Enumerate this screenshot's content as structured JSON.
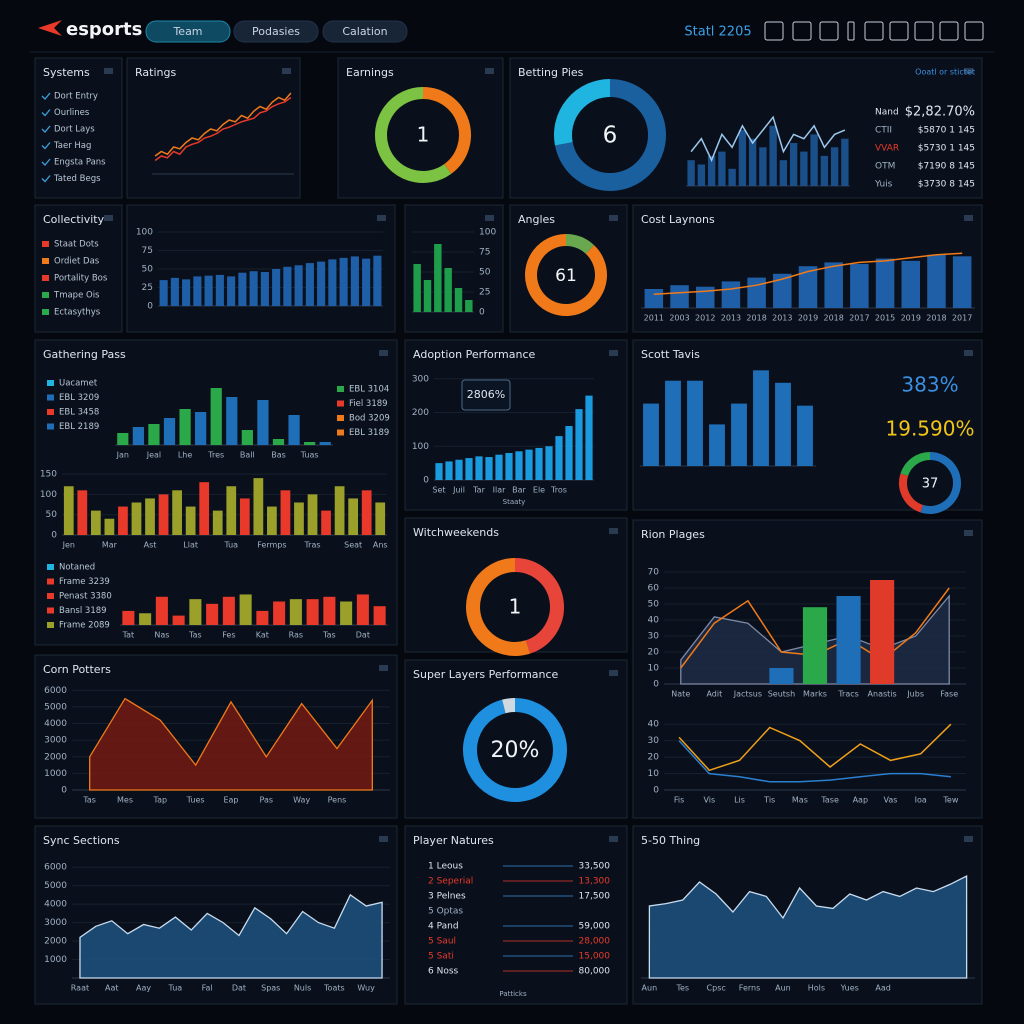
{
  "header": {
    "logo": "esports",
    "tabs": [
      "Team",
      "Podasies",
      "Calation"
    ],
    "status": "Statl 2205"
  },
  "chart_data": [
    {
      "type": "list",
      "title": "Systems",
      "marker": "check",
      "color": "#3a9fd8",
      "items": [
        "Dort Entry",
        "Ourlines",
        "Dort Lays",
        "Taer Hag",
        "Engsta Pans",
        "Tated Begs"
      ]
    },
    {
      "type": "line",
      "title": "Ratings",
      "ylim": [
        0,
        100
      ],
      "series": [
        {
          "color": "#f07a1a",
          "values": [
            20,
            25,
            22,
            30,
            28,
            35,
            40,
            38,
            45,
            50,
            48,
            55,
            60,
            58,
            65,
            62,
            70,
            75,
            72,
            80,
            85,
            82,
            90
          ]
        },
        {
          "color": "#e8392a",
          "values": [
            15,
            20,
            18,
            25,
            22,
            30,
            33,
            35,
            40,
            42,
            45,
            50,
            52,
            55,
            58,
            60,
            62,
            68,
            70,
            75,
            78,
            80,
            85
          ]
        }
      ]
    },
    {
      "type": "donut",
      "title": "Earnings",
      "values": [
        40,
        60
      ],
      "colors": [
        "#f07a1a",
        "#7cc243"
      ],
      "center": "1"
    },
    {
      "type": "donut",
      "title": "Betting Pies",
      "values": [
        72,
        28
      ],
      "colors": [
        "#1a5f9e",
        "#1fb5e0"
      ],
      "center": "6"
    },
    {
      "type": "combo",
      "ylim": [
        0,
        100
      ],
      "series": [
        {
          "type": "bar",
          "color": "#1a4f8a",
          "values": [
            30,
            25,
            35,
            40,
            20,
            65,
            55,
            45,
            70,
            30,
            50,
            40,
            60,
            35,
            45,
            55
          ]
        },
        {
          "type": "line",
          "color": "#9cc8ee",
          "values": [
            40,
            55,
            30,
            60,
            45,
            70,
            50,
            65,
            80,
            40,
            60,
            55,
            70,
            45,
            60,
            65
          ]
        }
      ]
    },
    {
      "type": "stats",
      "note": "Ooatl or stictet",
      "colors": [
        "#dfe6ef",
        "#9fb0c4",
        "#e8392a",
        "#9fb0c4",
        "#9fb0c4"
      ],
      "rows": [
        [
          "Nand",
          "$2,82.70%"
        ],
        [
          "CTII",
          "$5870 1 145"
        ],
        [
          "VVAR",
          "$5730 1 145"
        ],
        [
          "OTM",
          "$7190 8 145"
        ],
        [
          "Yuis",
          "$3730 8 145"
        ]
      ]
    },
    {
      "type": "list",
      "title": "Collectivity",
      "marker": "dot",
      "colors": [
        "#e8392a",
        "#f07a1a",
        "#e8392a",
        "#2aa84a",
        "#2aa84a"
      ],
      "items": [
        "Staat Dots",
        "Ordiet Das",
        "Portality Bos",
        "Tmape Ois",
        "Ectasythys"
      ]
    },
    {
      "type": "bar",
      "color": "#1f5fa8",
      "ylim": [
        0,
        100
      ],
      "yticks": [
        0,
        25,
        50,
        75,
        100
      ],
      "values": [
        35,
        38,
        36,
        40,
        41,
        42,
        40,
        45,
        47,
        46,
        50,
        53,
        55,
        58,
        60,
        63,
        65,
        67,
        64,
        68
      ]
    },
    {
      "type": "bar",
      "color": "#1e9e4a",
      "ylim": [
        0,
        100
      ],
      "yticks": [
        0,
        25,
        50,
        75,
        100
      ],
      "y_axis": "right",
      "values": [
        60,
        40,
        85,
        55,
        30,
        15
      ]
    },
    {
      "type": "donut",
      "title": "Angles",
      "values": [
        12,
        88
      ],
      "colors": [
        "#6aa84f",
        "#f07a1a"
      ],
      "center": "61"
    },
    {
      "type": "combo",
      "title": "Cost Laynons",
      "ylim": [
        0,
        100
      ],
      "categories": [
        "2011",
        "2003",
        "2012",
        "2013",
        "2018",
        "2013",
        "2019",
        "2018",
        "2017",
        "2015",
        "2019",
        "2018",
        "2017"
      ],
      "series": [
        {
          "type": "bar",
          "color": "#1f5fa8",
          "values": [
            25,
            30,
            28,
            35,
            40,
            45,
            55,
            60,
            58,
            65,
            62,
            70,
            68
          ]
        },
        {
          "type": "line",
          "color": "#f07a1a",
          "values": [
            18,
            20,
            22,
            25,
            30,
            38,
            48,
            55,
            60,
            62,
            66,
            70,
            72
          ]
        }
      ]
    },
    {
      "type": "list",
      "title": "Gathering Pass",
      "marker": "dot",
      "colors": [
        "#1fb5e0",
        "#1f6fb8",
        "#e8392a",
        "#1f6fb8"
      ],
      "items": [
        "Uacamet",
        "EBL 3209",
        "EBL 3458",
        "EBL 2189"
      ]
    },
    {
      "type": "list",
      "marker": "dot",
      "colors": [
        "#2aa84a",
        "#e8392a",
        "#f07a1a",
        "#f07a1a"
      ],
      "items": [
        "EBL 3104",
        "Fiel 3189",
        "Bod 3209",
        "EBL 3189"
      ]
    },
    {
      "type": "bar",
      "colors": [
        "#2aa84a",
        "#1f6fb8"
      ],
      "ylim": [
        0,
        100
      ],
      "values": [
        20,
        30,
        35,
        45,
        60,
        55,
        95,
        80,
        25,
        75,
        10,
        50,
        5,
        5
      ],
      "categories": [
        "Jan",
        null,
        "Jeal",
        null,
        "Lhe",
        null,
        "Tres",
        null,
        "Ball",
        null,
        "Bas",
        null,
        "Tuas",
        null
      ]
    },
    {
      "type": "bar",
      "colors": [
        "#9aa02a",
        "#e8392a",
        "#9aa02a"
      ],
      "ylim": [
        0,
        160
      ],
      "yticks": [
        0,
        50,
        100,
        150
      ],
      "values": [
        120,
        110,
        60,
        40,
        70,
        80,
        90,
        100,
        110,
        70,
        130,
        60,
        120,
        90,
        140,
        70,
        110,
        80,
        100,
        60,
        120,
        90,
        110,
        80
      ],
      "categories": [
        "Jen",
        null,
        null,
        "Mar",
        null,
        null,
        "Ast",
        null,
        null,
        "Llat",
        null,
        null,
        "Tua",
        null,
        null,
        "Fermps",
        null,
        null,
        "Tras",
        null,
        null,
        "Seat",
        null,
        "Ans"
      ]
    },
    {
      "type": "list",
      "marker": "dot",
      "colors": [
        "#1fb5e0",
        "#e8392a",
        "#e8392a",
        "#e8392a",
        "#9aa02a"
      ],
      "items": [
        "Notaned",
        "Frame 3239",
        "Penast 3380",
        "Bansl 3189",
        "Frame 2089"
      ]
    },
    {
      "type": "bar",
      "colors": [
        "#e8392a",
        "#9aa02a",
        "#e8392a"
      ],
      "ylim": [
        0,
        100
      ],
      "values": [
        30,
        25,
        60,
        20,
        55,
        45,
        60,
        65,
        30,
        50,
        55,
        55,
        60,
        50,
        65,
        40
      ],
      "categories": [
        "Tat",
        null,
        "Nas",
        null,
        "Tas",
        null,
        "Fes",
        null,
        "Kat",
        null,
        "Ras",
        null,
        "Tas",
        null,
        "Dat",
        null
      ]
    },
    {
      "type": "bar",
      "title": "Adoption Performance",
      "color": "#1a9be0",
      "ylim": [
        0,
        320
      ],
      "yticks": [
        0,
        100,
        200,
        300
      ],
      "annotation": "2806%",
      "xlabel": "Staaty",
      "values": [
        50,
        55,
        60,
        65,
        70,
        68,
        75,
        80,
        85,
        90,
        95,
        100,
        130,
        160,
        210,
        250
      ],
      "categories": [
        "Set",
        null,
        "Juil",
        null,
        "Tar",
        null,
        "Ilar",
        null,
        "Bar",
        null,
        "Ele",
        null,
        "Tros",
        null,
        null,
        null
      ]
    },
    {
      "type": "bar",
      "title": "Scott Tavis",
      "color": "#1f6fb8",
      "ylim": [
        0,
        100
      ],
      "values": [
        60,
        82,
        82,
        40,
        60,
        92,
        80,
        58
      ]
    },
    {
      "type": "kpi",
      "colors": [
        "#3a8fe0",
        "#f0c419"
      ],
      "items": [
        "383%",
        "19.590%"
      ]
    },
    {
      "type": "donut",
      "values": [
        55,
        25,
        20
      ],
      "colors": [
        "#1f6fb8",
        "#e03a2a",
        "#2aa84a"
      ],
      "center": "37"
    },
    {
      "type": "donut",
      "title": "Witchweekends",
      "values": [
        45,
        55
      ],
      "colors": [
        "#e8453a",
        "#f07a1a"
      ],
      "center": "1"
    },
    {
      "type": "combo",
      "title": "Rion Plages",
      "ylim": [
        0,
        80
      ],
      "yticks": [
        0,
        10,
        20,
        30,
        40,
        50,
        60,
        70
      ],
      "categories": [
        "Nate",
        "Adit",
        "Jactsus",
        "Seutsh",
        "Marks",
        "Tracs",
        "Anastis",
        "Jubs",
        "Fase"
      ],
      "series": [
        {
          "type": "area",
          "color": "#1c2a44",
          "edge": "#7f8aa8",
          "values": [
            15,
            42,
            38,
            20,
            25,
            30,
            22,
            30,
            55
          ]
        },
        {
          "type": "line",
          "color": "#f07a1a",
          "values": [
            10,
            38,
            52,
            20,
            18,
            28,
            15,
            32,
            60
          ]
        },
        {
          "type": "bar",
          "colors": [
            "#2aa84a",
            "#1f6fb8",
            "#e03a2a",
            "#1f6fb8"
          ],
          "values": [
            null,
            null,
            null,
            10,
            48,
            55,
            65,
            null,
            null
          ]
        }
      ]
    },
    {
      "type": "line",
      "ylim": [
        0,
        45
      ],
      "yticks": [
        0,
        10,
        20,
        30,
        40
      ],
      "categories": [
        "Fis",
        "Vis",
        "Lis",
        "Tis",
        "Mas",
        "Tase",
        "Aap",
        "Vas",
        "Ioa",
        "Tew"
      ],
      "series": [
        {
          "color": "#f0a01a",
          "values": [
            32,
            12,
            18,
            38,
            30,
            14,
            28,
            18,
            22,
            40
          ]
        },
        {
          "color": "#2a7fd0",
          "values": [
            30,
            10,
            8,
            5,
            5,
            6,
            8,
            10,
            10,
            8
          ]
        }
      ]
    },
    {
      "type": "area",
      "title": "Corn Potters",
      "color": "#6e1a14",
      "edge": "#f07a1a",
      "ylim": [
        0,
        6500
      ],
      "yticks": [
        0,
        1000,
        2000,
        3000,
        4000,
        5000,
        6000
      ],
      "values": [
        2000,
        5500,
        4200,
        1500,
        5300,
        2000,
        5200,
        2500,
        5400
      ],
      "categories": [
        "Tas",
        "Mes",
        "Tap",
        "Tues",
        "Eap",
        "Pas",
        "Way",
        "Pens",
        null
      ]
    },
    {
      "type": "donut",
      "title": "Super Layers Performance",
      "values": [
        96,
        4
      ],
      "colors": [
        "#1f8fe0",
        "#d0d8e0"
      ],
      "center": "20%"
    },
    {
      "type": "area",
      "title": "Sync Sections",
      "color": "#1c4f7a",
      "edge": "#c8dcf0",
      "ylim": [
        0,
        6500
      ],
      "yticks": [
        1000,
        2000,
        3000,
        4000,
        5000,
        6000
      ],
      "values": [
        2200,
        2800,
        3100,
        2400,
        2900,
        2700,
        3300,
        2600,
        3500,
        3000,
        2300,
        3800,
        3200,
        2400,
        3600,
        3000,
        2700,
        4500,
        3900,
        4100
      ],
      "categories": [
        "Raat",
        null,
        "Aat",
        null,
        "Aay",
        null,
        "Tua",
        null,
        "Fal",
        null,
        "Dat",
        null,
        "Spas",
        null,
        "Nuls",
        null,
        "Toats",
        null,
        "Wuy",
        null
      ]
    },
    {
      "type": "table",
      "title": "Player Natures",
      "xlabel": "Patticks",
      "colors": [
        "#dfe6ef",
        "#e8392a",
        "#dfe6ef",
        "#9fb0c4",
        "#dfe6ef",
        "#e8392a",
        "#e8392a",
        "#dfe6ef"
      ],
      "rows": [
        [
          "1 Leous",
          "33,500"
        ],
        [
          "2 Seperial",
          "13,300"
        ],
        [
          "3 Pelnes",
          "17,500"
        ],
        [
          "5 Optas"
        ],
        [
          "4 Pand",
          "59,000"
        ],
        [
          "5 Saul",
          "28,000"
        ],
        [
          "5 Sati",
          "15,000"
        ],
        [
          "6 Noss",
          "80,000"
        ]
      ]
    },
    {
      "type": "area",
      "title": "5-50 Thing",
      "color": "#1c4f7a",
      "edge": "#c8dcf0",
      "ylim": [
        0,
        100
      ],
      "values": [
        60,
        62,
        65,
        80,
        70,
        55,
        72,
        68,
        50,
        75,
        60,
        58,
        70,
        65,
        72,
        68,
        75,
        72,
        78,
        85
      ],
      "categories": [
        "Aun",
        null,
        "Tes",
        null,
        "Cpsc",
        null,
        "Ferns",
        null,
        "Aun",
        null,
        "Hols",
        null,
        "Yues",
        null,
        "Aad",
        null,
        null,
        null,
        null,
        null
      ]
    }
  ]
}
